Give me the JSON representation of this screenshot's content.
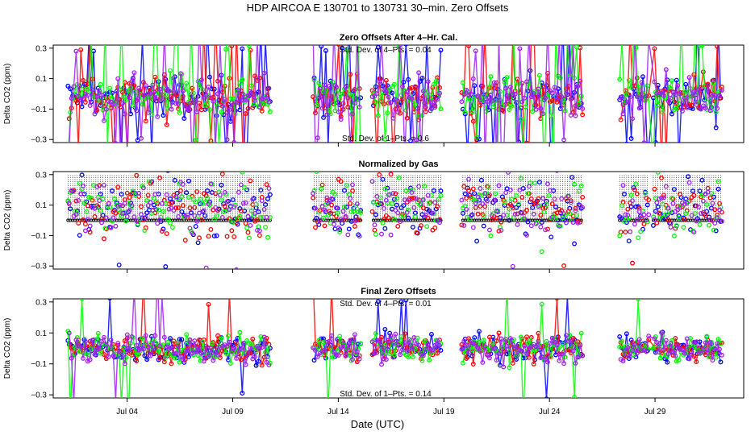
{
  "chart_data": {
    "type": "scatter",
    "title": "HDP    AIRCOA E    130701 to 130731    30–min. Zero Offsets",
    "xlabel": "Date (UTC)",
    "x_tick_labels": [
      "Jul 04",
      "Jul 09",
      "Jul 14",
      "Jul 19",
      "Jul 24",
      "Jul 29"
    ],
    "x_tick_days": [
      4,
      9,
      14,
      19,
      24,
      29
    ],
    "xlim_days": [
      0.5,
      33.2
    ],
    "ylim": [
      -0.32,
      0.32
    ],
    "y_ticks": [
      -0.3,
      -0.1,
      0.1,
      0.3
    ],
    "y_tick_labels": [
      "−0.3",
      "−0.1",
      "0.1",
      "0.3"
    ],
    "series_colors": {
      "gas1": "#0000ff",
      "gas2": "#ff0000",
      "gas3": "#00ff00",
      "gas4": "#a020f0",
      "reference": "#000000"
    },
    "data_gaps_days": [
      [
        10.8,
        12.8
      ],
      [
        15.1,
        15.6
      ],
      [
        18.9,
        19.8
      ],
      [
        25.6,
        27.3
      ],
      [
        28.7,
        28.9
      ]
    ],
    "panels": [
      {
        "title": "Zero Offsets After 4–Hr. Cal.",
        "ylabel": "Delta CO2 (ppm)",
        "annotation_top": "Std. Dev. of 4–Pts. = 0.04",
        "annotation_bottom": "Std. Dev. of 1–Pts. = 0.6",
        "baseline": -0.02,
        "spread": 0.07,
        "outlier_rate": 0.16,
        "line_segments": true,
        "reference_band": false
      },
      {
        "title": "Normalized by Gas",
        "ylabel": "Delta CO2 (ppm)",
        "annotation_top": "",
        "annotation_bottom": "",
        "baseline": 0.08,
        "spread": 0.09,
        "outlier_rate": 0.05,
        "line_segments": false,
        "reference_band": true,
        "reference_level": 0.0
      },
      {
        "title": "Final Zero Offsets",
        "ylabel": "Delta CO2 (ppm)",
        "annotation_top": "Std. Dev. of 4–Pts. = 0.01",
        "annotation_bottom": "Std. Dev. of 1–Pts. = 0.14",
        "baseline": 0.0,
        "spread": 0.045,
        "outlier_rate": 0.025,
        "line_segments": true,
        "reference_band": false
      }
    ]
  }
}
